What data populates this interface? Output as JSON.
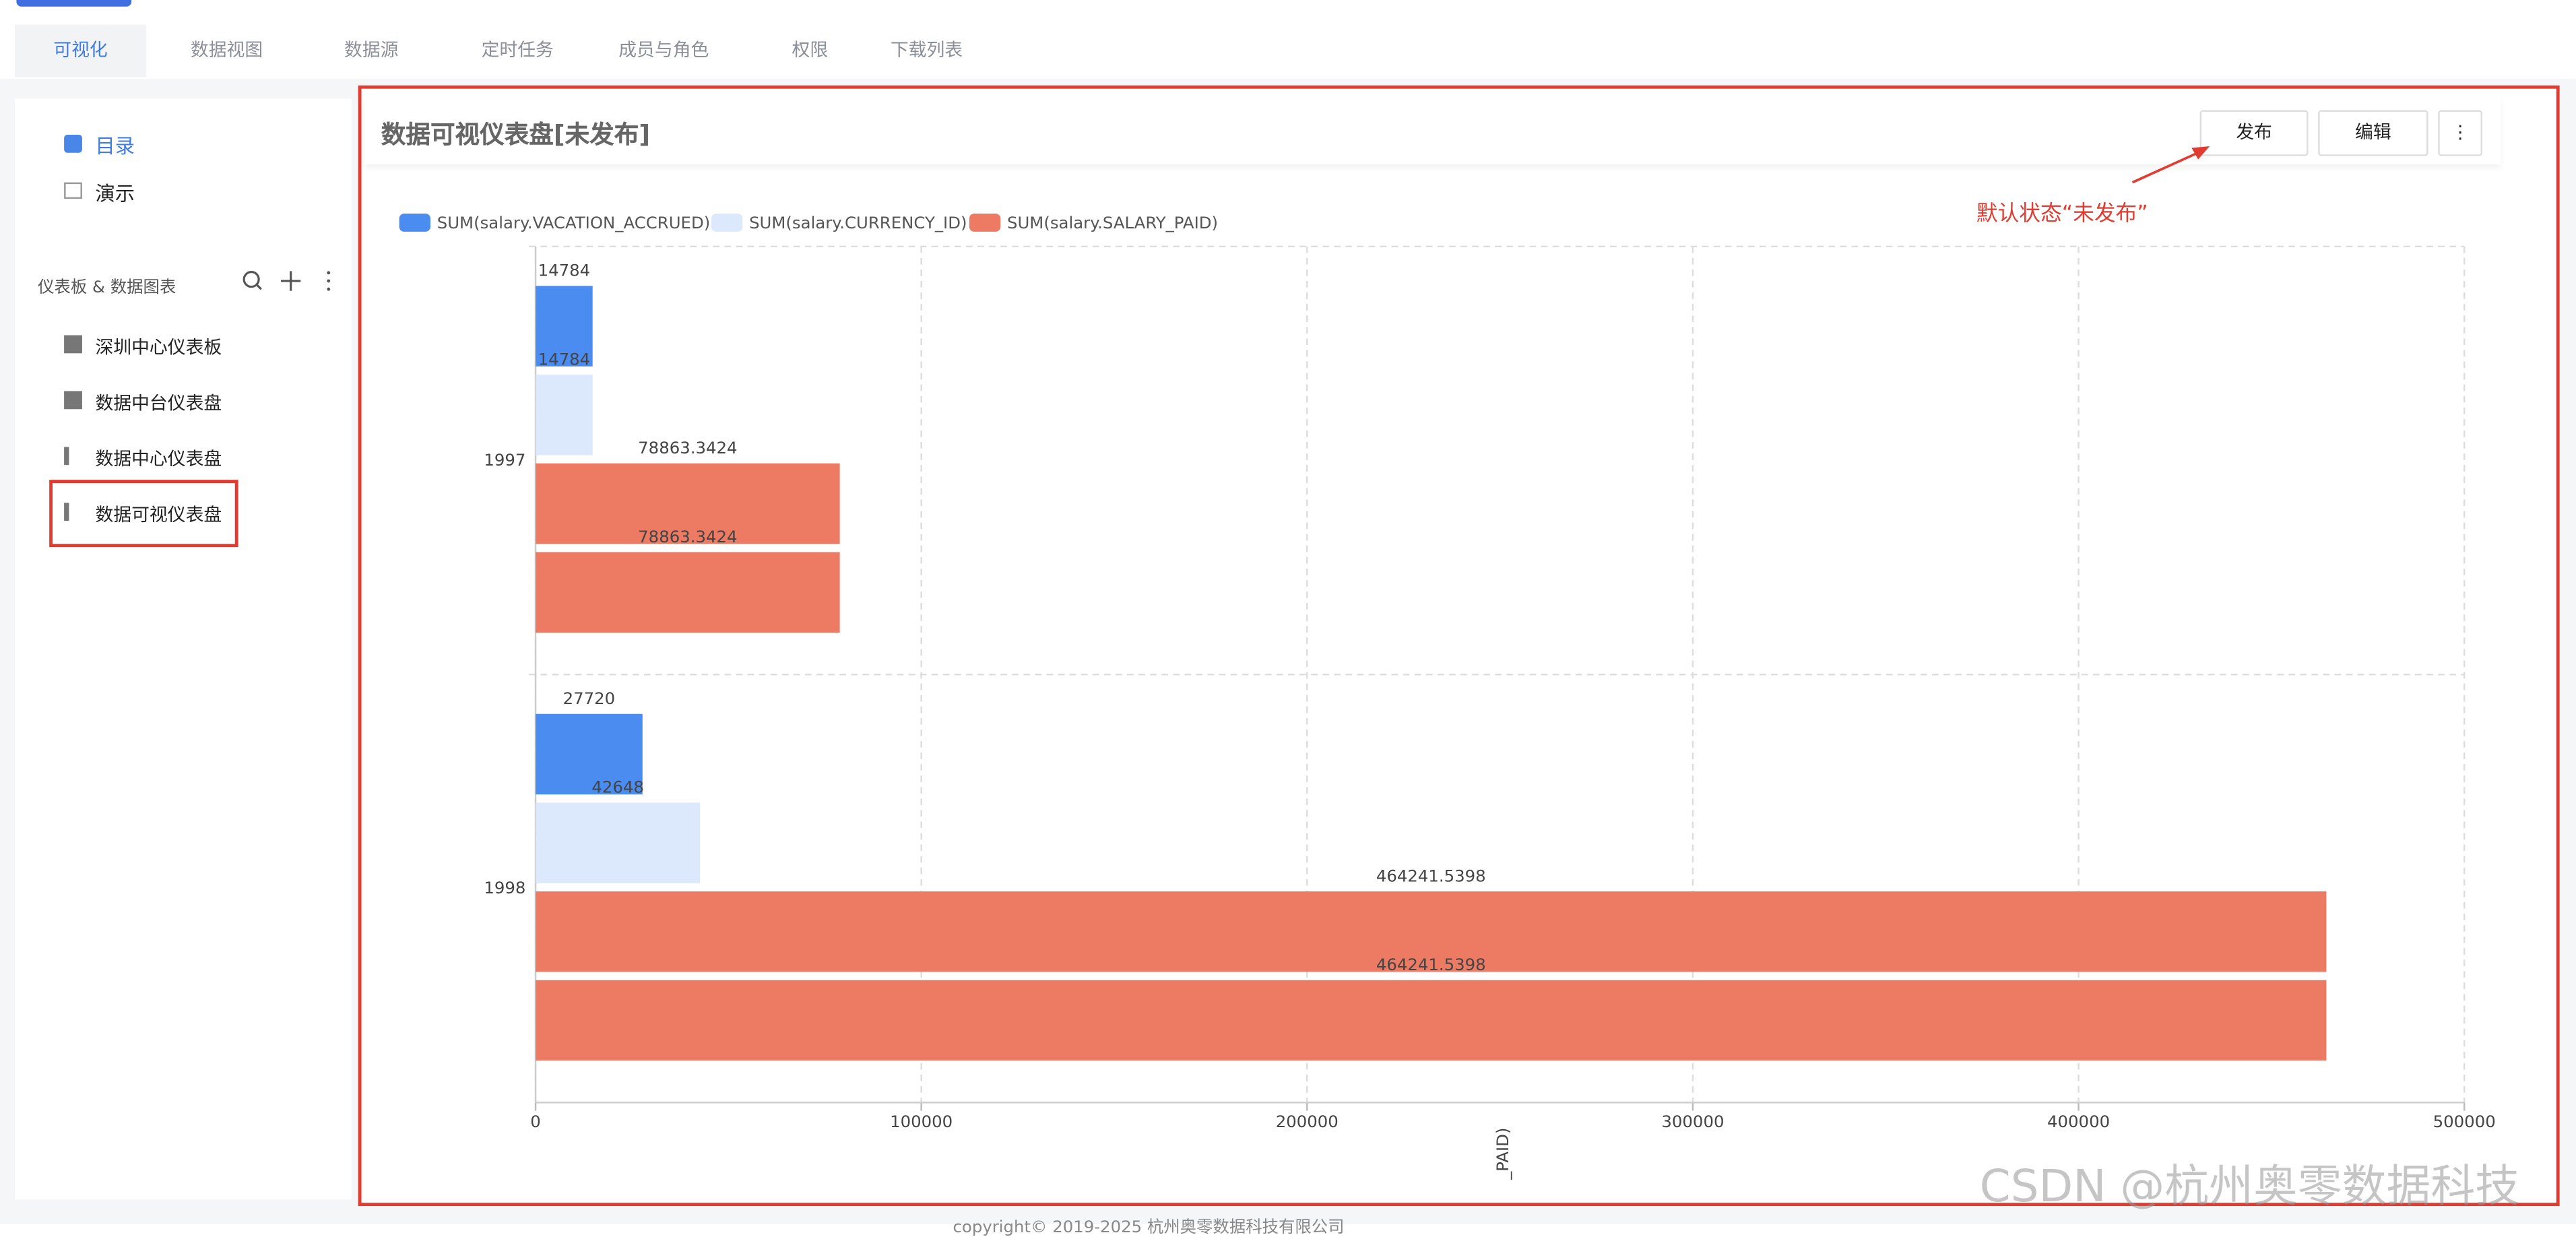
{
  "tabs": [
    "可视化",
    "数据视图",
    "数据源",
    "定时任务",
    "成员与角色",
    "权限",
    "下载列表"
  ],
  "sidebar": {
    "nav": [
      "目录",
      "演示"
    ],
    "section": "仪表板 & 数据图表",
    "items": [
      "深圳中心仪表板",
      "数据中台仪表盘",
      "数据中心仪表盘",
      "数据可视仪表盘"
    ]
  },
  "header": {
    "title": "数据可视仪表盘[未发布]",
    "buttons": [
      "发布",
      "编辑"
    ]
  },
  "annotation": "默认状态“未发布”",
  "chart_data": {
    "type": "hbar",
    "categories": [
      "1997",
      "1998"
    ],
    "series": [
      {
        "name": "SUM(salary.VACATION_ACCRUED)",
        "color": "#4a8cf0",
        "values": [
          14784,
          27720
        ]
      },
      {
        "name": "SUM(salary.CURRENCY_ID)",
        "color": "#dce8fb",
        "values": [
          14784,
          42648
        ]
      },
      {
        "name": "SUM(salary.SALARY_PAID)",
        "color": "#ed7a63",
        "values": [
          78863.3424,
          464241.5398
        ]
      },
      {
        "color": "#ed7a63",
        "values": [
          78863.3424,
          464241.5398
        ]
      }
    ],
    "xlim": [
      0,
      500000
    ],
    "xticks": [
      0,
      100000,
      200000,
      300000,
      400000,
      500000
    ],
    "grid": true,
    "x_label": "_PAID)"
  },
  "watermark": "CSDN @杭州奥零数据科技",
  "footer": "copyright© 2019-2025 杭州奥零数据科技有限公司"
}
